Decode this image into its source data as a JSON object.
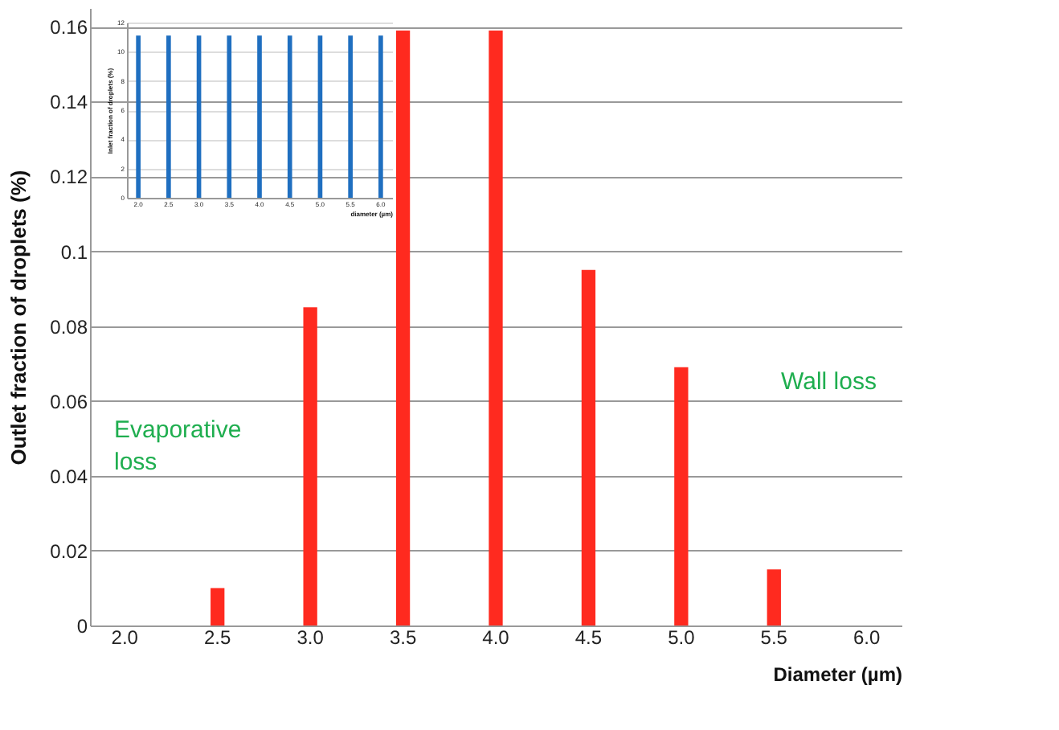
{
  "chart_data": [
    {
      "type": "bar",
      "xlabel": "Diameter (µm)",
      "ylabel": "Outlet  fraction  of  droplets (%)",
      "categories": [
        "2.0",
        "2.5",
        "3.0",
        "3.5",
        "4.0",
        "4.5",
        "5.0",
        "5.5",
        "6.0"
      ],
      "values": [
        0,
        0.01,
        0.085,
        0.159,
        0.159,
        0.095,
        0.069,
        0.015,
        0
      ],
      "color": "#ff2a1f",
      "ylim": [
        0,
        0.165
      ],
      "yticks": [
        0,
        0.02,
        0.04,
        0.06,
        0.08,
        0.1,
        0.12,
        0.14,
        0.16
      ],
      "grid": "y",
      "annotations": [
        "Evaporative\nloss",
        "Wall loss"
      ]
    },
    {
      "type": "bar",
      "xlabel": "diameter (µm)",
      "ylabel": "Inlet fraction of droplets (%)",
      "categories": [
        "2.0",
        "2.5",
        "3.0",
        "3.5",
        "4.0",
        "4.5",
        "5.0",
        "5.5",
        "6.0"
      ],
      "values": [
        11.1,
        11.1,
        11.1,
        11.1,
        11.1,
        11.1,
        11.1,
        11.1,
        11.1
      ],
      "color": "#1f6fc0",
      "ylim": [
        0,
        12
      ],
      "yticks": [
        0,
        2,
        4,
        6,
        8,
        10,
        12
      ],
      "grid": "y"
    }
  ]
}
